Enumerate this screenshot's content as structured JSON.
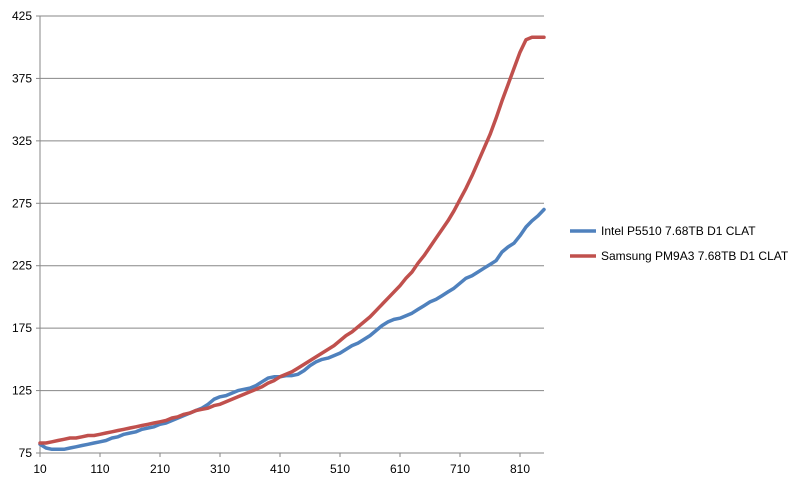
{
  "chart_data": {
    "type": "line",
    "title": "",
    "xlabel": "",
    "ylabel": "",
    "grid": true,
    "legend_position": "right",
    "ylim": [
      75,
      425
    ],
    "xlim": [
      10,
      850
    ],
    "y_ticks": [
      75,
      125,
      175,
      225,
      275,
      325,
      375,
      425
    ],
    "x_ticks": [
      10,
      110,
      210,
      310,
      410,
      510,
      610,
      710,
      810
    ],
    "x": [
      10,
      20,
      30,
      40,
      50,
      60,
      70,
      80,
      90,
      100,
      110,
      120,
      130,
      140,
      150,
      160,
      170,
      180,
      190,
      200,
      210,
      220,
      230,
      240,
      250,
      260,
      270,
      280,
      290,
      300,
      310,
      320,
      330,
      340,
      350,
      360,
      370,
      380,
      390,
      400,
      410,
      420,
      430,
      440,
      450,
      460,
      470,
      480,
      490,
      500,
      510,
      520,
      530,
      540,
      550,
      560,
      570,
      580,
      590,
      600,
      610,
      620,
      630,
      640,
      650,
      660,
      670,
      680,
      690,
      700,
      710,
      720,
      730,
      740,
      750,
      760,
      770,
      780,
      790,
      800,
      810,
      820,
      830,
      840,
      850
    ],
    "series": [
      {
        "name": "Intel P5510 7.68TB D1 CLAT",
        "color": "#4f81bd",
        "values": [
          82,
          79,
          78,
          78,
          78,
          79,
          80,
          81,
          82,
          83,
          84,
          85,
          87,
          88,
          90,
          91,
          92,
          94,
          95,
          96,
          98,
          99,
          101,
          103,
          105,
          107,
          109,
          111,
          114,
          118,
          120,
          121,
          123,
          125,
          126,
          127,
          129,
          132,
          135,
          136,
          136,
          137,
          137,
          138,
          141,
          145,
          148,
          150,
          151,
          153,
          155,
          158,
          161,
          163,
          166,
          169,
          173,
          177,
          180,
          182,
          183,
          185,
          187,
          190,
          193,
          196,
          198,
          201,
          204,
          207,
          211,
          215,
          217,
          220,
          223,
          226,
          229,
          236,
          240,
          243,
          249,
          256,
          261,
          265,
          270
        ]
      },
      {
        "name": "Samsung PM9A3 7.68TB D1 CLAT",
        "color": "#c0504d",
        "values": [
          83,
          83,
          84,
          85,
          86,
          87,
          87,
          88,
          89,
          89,
          90,
          91,
          92,
          93,
          94,
          95,
          96,
          97,
          98,
          99,
          100,
          101,
          103,
          104,
          106,
          107,
          109,
          110,
          111,
          113,
          114,
          116,
          118,
          120,
          122,
          124,
          126,
          128,
          131,
          133,
          136,
          138,
          140,
          143,
          146,
          149,
          152,
          155,
          158,
          161,
          165,
          169,
          172,
          176,
          180,
          184,
          189,
          194,
          199,
          204,
          209,
          215,
          220,
          227,
          233,
          240,
          247,
          254,
          261,
          269,
          278,
          287,
          297,
          308,
          319,
          330,
          343,
          357,
          370,
          383,
          396,
          406,
          408,
          408,
          408
        ]
      }
    ]
  }
}
